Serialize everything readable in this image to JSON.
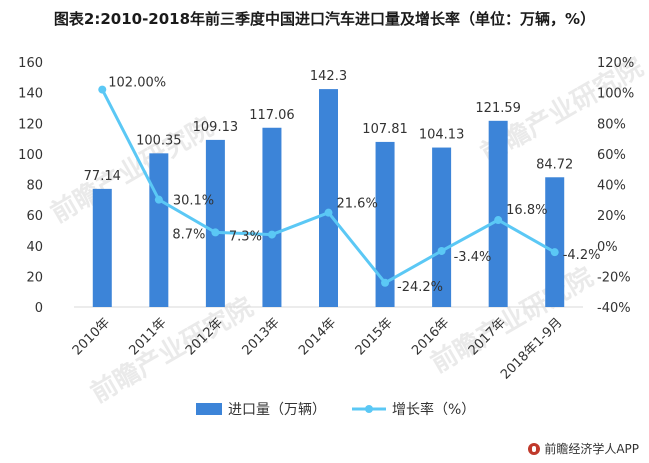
{
  "title": "图表2:2010-2018年前三季度中国进口汽车进口量及增长率（单位：万辆，%）",
  "source": "前瞻经济学人APP",
  "watermark": "前瞻产业研究院",
  "colors": {
    "bar": "#3c84d8",
    "line": "#5bc8f5",
    "axis": "#999999",
    "text": "#333333"
  },
  "chart_data": {
    "type": "bar",
    "categories": [
      "2010年",
      "2011年",
      "2012年",
      "2013年",
      "2014年",
      "2015年",
      "2016年",
      "2017年",
      "2018年1-9月"
    ],
    "series": [
      {
        "name": "进口量（万辆）",
        "type": "bar",
        "axis": "left",
        "values": [
          77.14,
          100.35,
          109.13,
          117.06,
          142.3,
          107.81,
          104.13,
          121.59,
          84.72
        ],
        "labels": [
          "77.14",
          "100.35",
          "109.13",
          "117.06",
          "142.3",
          "107.81",
          "104.13",
          "121.59",
          "84.72"
        ]
      },
      {
        "name": "增长率（%）",
        "type": "line",
        "axis": "right",
        "values": [
          102.0,
          30.1,
          8.7,
          7.3,
          21.6,
          -24.2,
          -3.4,
          16.8,
          -4.2
        ],
        "labels": [
          "102.00%",
          "30.1%",
          "8.7%",
          "7.3%",
          "21.6%",
          "-24.2%",
          "-3.4%",
          "16.8%",
          "-4.2%"
        ]
      }
    ],
    "ylim_left": [
      0,
      160
    ],
    "yticks_left": [
      "0",
      "20",
      "40",
      "60",
      "80",
      "100",
      "120",
      "140",
      "160"
    ],
    "ylim_right": [
      -40,
      120
    ],
    "yticks_right": [
      "-40%",
      "-20%",
      "0%",
      "20%",
      "40%",
      "60%",
      "80%",
      "100%",
      "120%"
    ],
    "grid": false,
    "legend_position": "bottom"
  }
}
